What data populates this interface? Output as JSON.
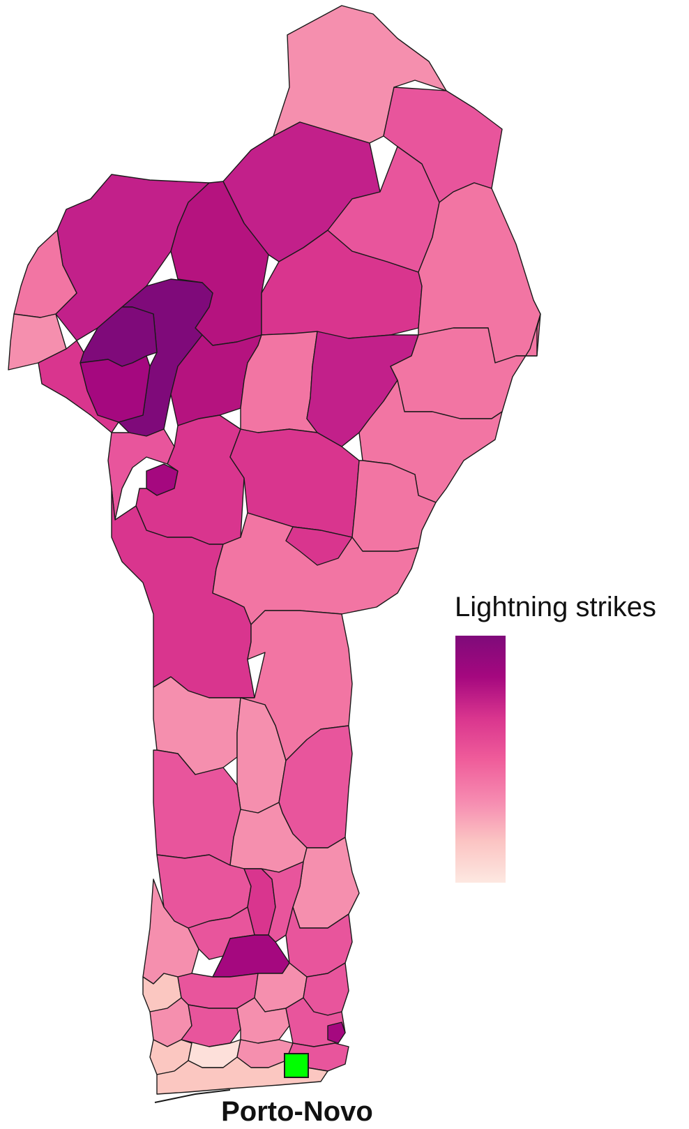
{
  "map": {
    "legend": {
      "title": "Lightning strikes",
      "gradient_colors": [
        "#7f0a7a",
        "#a5087f",
        "#d9358e",
        "#ef5c9a",
        "#f68ab0",
        "#fbc4c3",
        "#fde8e1"
      ],
      "gradient_direction": "high-at-top"
    },
    "marker": {
      "label": "Porto-Novo",
      "color": "#00ff00",
      "shape": "square"
    },
    "fill_palette": {
      "very_high": "#7f0a7a",
      "high": "#a5087f",
      "mid_high": "#c2208a",
      "mid": "#d9358e",
      "mid_low": "#e8559c",
      "low": "#f275a3",
      "lower": "#f58fae",
      "lowest": "#fbc7c1"
    }
  }
}
